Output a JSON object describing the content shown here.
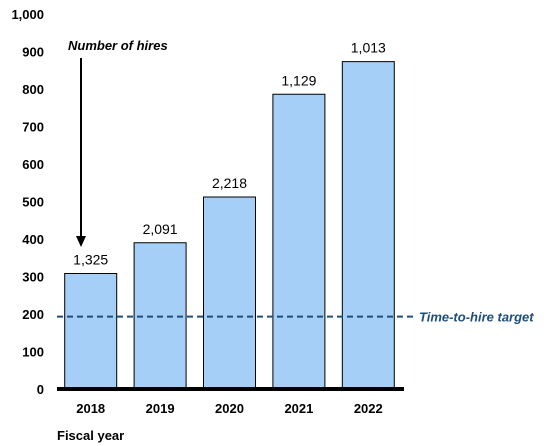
{
  "chart_data": {
    "type": "bar",
    "categories": [
      "2018",
      "2019",
      "2020",
      "2021",
      "2022"
    ],
    "values": [
      308,
      390,
      512,
      786,
      873
    ],
    "data_labels": [
      "1,325",
      "2,091",
      "2,218",
      "1,129",
      "1,013"
    ],
    "title": "",
    "xlabel": "Fiscal year",
    "ylabel": "",
    "ylim": [
      0,
      1000
    ],
    "yticks": [
      0,
      100,
      200,
      300,
      400,
      500,
      600,
      700,
      800,
      900,
      1000
    ],
    "ytick_labels": [
      "0",
      "100",
      "200",
      "300",
      "400",
      "500",
      "600",
      "700",
      "800",
      "900",
      "1,000"
    ],
    "grid": false,
    "bar_color": "#a6cff7",
    "target_line": {
      "value": 193,
      "label": "Time-to-hire target",
      "color": "#1f4e79"
    },
    "annotation": {
      "text": "Number of hires",
      "points_to": "2018"
    }
  }
}
